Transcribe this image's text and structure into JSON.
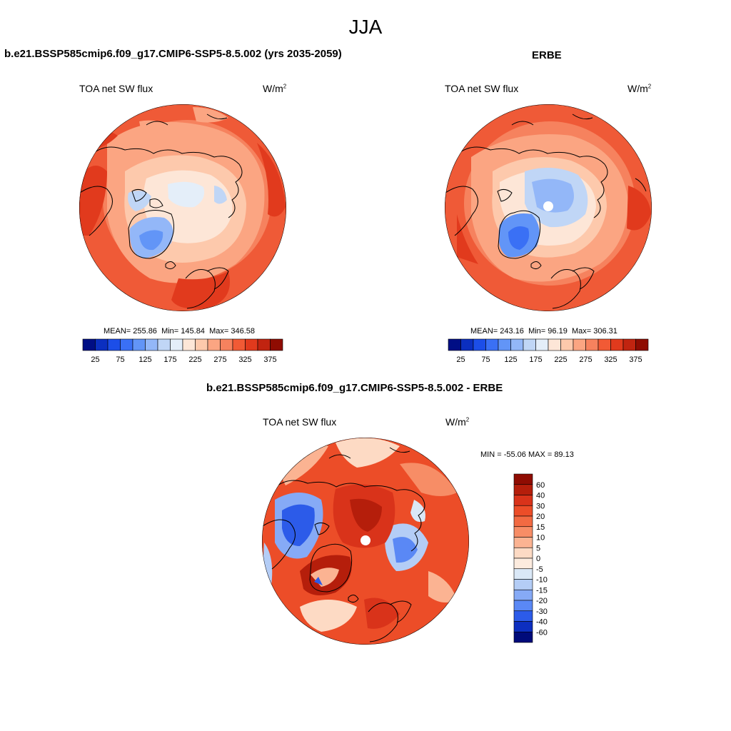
{
  "figure": {
    "season": "JJA"
  },
  "panels": [
    {
      "title": "b.e21.BSSP585cmip6.f09_g17.CMIP6-SSP5-8.5.002 (yrs 2035-2059)",
      "left_label": "TOA net SW flux",
      "units": "W/m",
      "units_sup": "2",
      "stats": {
        "mean_label": "MEAN=",
        "mean": "255.86",
        "min_label": "Min=",
        "min": "145.84",
        "max_label": "Max=",
        "max": "346.58"
      }
    },
    {
      "title": "ERBE",
      "left_label": "TOA net SW flux",
      "units": "W/m",
      "units_sup": "2",
      "stats": {
        "mean_label": "MEAN=",
        "mean": "243.16",
        "min_label": "Min=",
        "min": "96.19",
        "max_label": "Max=",
        "max": "306.31"
      }
    },
    {
      "title": "b.e21.BSSP585cmip6.f09_g17.CMIP6-SSP5-8.5.002 - ERBE",
      "left_label": "TOA net SW flux",
      "units": "W/m",
      "units_sup": "2",
      "minmax": "MIN = -55.06 MAX =  89.13"
    }
  ],
  "abs_colorbar": {
    "tick_labels": [
      "25",
      "75",
      "125",
      "175",
      "225",
      "275",
      "325",
      "375"
    ],
    "colors": [
      "#000e85",
      "#0b2fc0",
      "#1c4ee8",
      "#3a70f5",
      "#6295f7",
      "#93b7f8",
      "#c0d6f6",
      "#e4eef9",
      "#fde6d7",
      "#fdc9ac",
      "#fba582",
      "#f6825e",
      "#f15a35",
      "#e13a1d",
      "#c12410",
      "#8f0c02"
    ]
  },
  "diff_colorbar": {
    "tick_labels": [
      "60",
      "40",
      "30",
      "20",
      "15",
      "10",
      "5",
      "0",
      "-5",
      "-10",
      "-15",
      "-20",
      "-30",
      "-40",
      "-60"
    ],
    "colors": [
      "#8f0c02",
      "#b51e0b",
      "#d9331a",
      "#ec4d28",
      "#f26a42",
      "#f78d66",
      "#fbb392",
      "#fddac4",
      "#fcebde",
      "#dae8f7",
      "#b4cdf6",
      "#86aaf6",
      "#5a88f5",
      "#2c5be9",
      "#0d2fc0",
      "#000b7a"
    ]
  }
}
